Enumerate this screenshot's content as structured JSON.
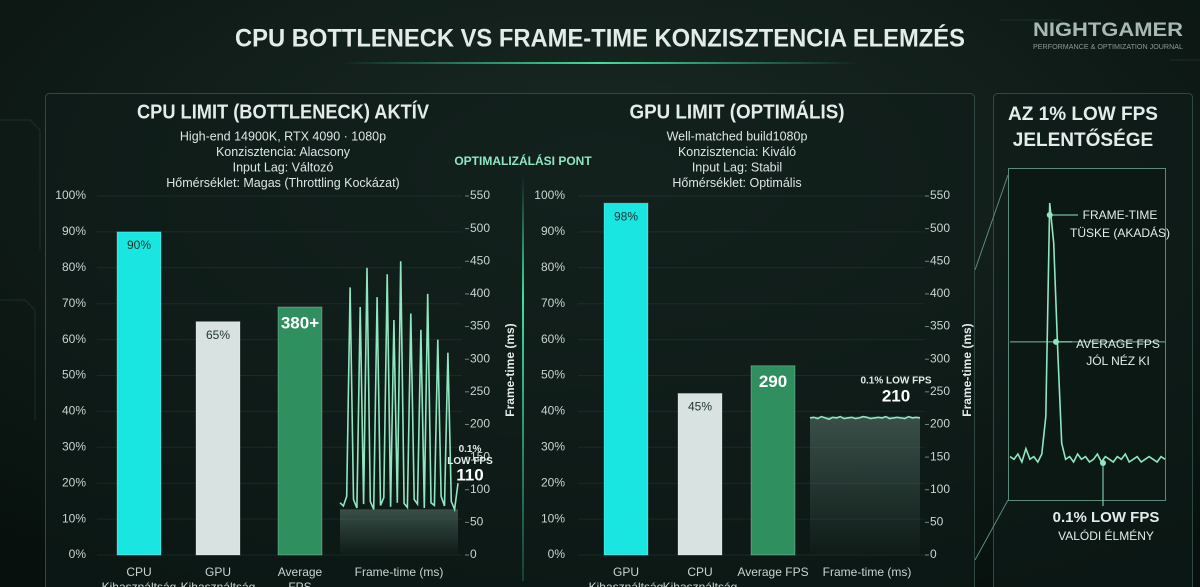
{
  "header": {
    "title": "CPU BOTTLENECK VS FRAME-TIME KONZISZTENCIA ELEMZÉS",
    "brand": "NIGHTGAMER",
    "brand_tagline": "PERFORMANCE & OPTIMIZATION JOURNAL",
    "divider_label": "OPTIMALIZÁLÁSI PONT"
  },
  "chart_data": [
    {
      "type": "bar",
      "title": "CPU LIMIT (BOTTLENECK) AKTÍV",
      "subtitle": [
        "High-end 14900K, RTX 4090 · 1080p",
        "Konzisztencia: Alacsony",
        "Input Lag: Változó",
        "Hőmérséklet: Magas (Throttling Kockázat)"
      ],
      "bars": [
        {
          "category": "CPU Kihasználtság",
          "value": 90,
          "value_label": "90%",
          "color": "#19e6e0"
        },
        {
          "category": "GPU Kihasználtság",
          "value": 65,
          "value_label": "65%",
          "color": "#d8e2e0"
        },
        {
          "category": "Average FPS",
          "value": 380,
          "value_label": "380+",
          "color": "#2f8f5e",
          "axis": "y2"
        }
      ],
      "frametime": {
        "name": "Frame-time (ms)",
        "color": "#8fe6c0",
        "axis": "y2",
        "values": [
          80,
          75,
          90,
          410,
          85,
          72,
          380,
          78,
          440,
          82,
          70,
          395,
          76,
          88,
          430,
          74,
          360,
          80,
          450,
          79,
          73,
          370,
          85,
          78,
          345,
          72,
          400,
          80,
          76,
          330,
          90,
          75,
          310,
          82,
          70,
          110
        ],
        "low_label": "0.1% LOW FPS",
        "low_value": 110
      },
      "ylim": [
        0,
        100
      ],
      "yticks": [
        {
          "value": 0,
          "label": "0%"
        },
        {
          "value": 10,
          "label": "10%"
        },
        {
          "value": 20,
          "label": "20%"
        },
        {
          "value": 30,
          "label": "30%"
        },
        {
          "value": 40,
          "label": "40%"
        },
        {
          "value": 50,
          "label": "50%"
        },
        {
          "value": 60,
          "label": "60%"
        },
        {
          "value": 70,
          "label": "70%"
        },
        {
          "value": 80,
          "label": "80%"
        },
        {
          "value": 90,
          "label": "90%"
        },
        {
          "value": 100,
          "label": "100%"
        }
      ],
      "y2lim": [
        0,
        550
      ],
      "y2ticks": [
        0,
        50,
        100,
        150,
        200,
        250,
        300,
        350,
        400,
        450,
        500,
        550
      ],
      "y2label": "Frame-time (ms)",
      "grid": true
    },
    {
      "type": "bar",
      "title": "GPU LIMIT (OPTIMÁLIS)",
      "subtitle": [
        "Well-matched build1080p",
        "Konzisztencia: Kiváló",
        "Input Lag: Stabil",
        "Hőmérséklet: Optimális"
      ],
      "bars": [
        {
          "category": "GPU Kihasználtság",
          "value": 98,
          "value_label": "98%",
          "color": "#19e6e0"
        },
        {
          "category": "CPU Kihasználtság",
          "value": 45,
          "value_label": "45%",
          "color": "#d8e2e0"
        },
        {
          "category": "Average FPS",
          "value": 290,
          "color": "#2f8f5e",
          "axis": "y2"
        }
      ],
      "frametime": {
        "name": "Frame-time (ms)",
        "color": "#8fe6c0",
        "axis": "y2",
        "values": [
          210,
          211,
          209,
          212,
          210,
          208,
          211,
          210,
          212,
          209,
          210,
          211,
          209,
          210,
          212,
          211,
          209,
          210,
          211,
          210,
          212,
          209,
          210,
          211,
          210,
          209,
          212,
          210,
          211,
          210
        ],
        "low_label": "0.1% LOW FPS",
        "low_value": 210
      },
      "ylim": [
        0,
        100
      ],
      "yticks": [
        {
          "value": 0,
          "label": "0%"
        },
        {
          "value": 10,
          "label": "10%"
        },
        {
          "value": 20,
          "label": "20%"
        },
        {
          "value": 30,
          "label": "30%"
        },
        {
          "value": 40,
          "label": "40%"
        },
        {
          "value": 50,
          "label": "50%"
        },
        {
          "value": 60,
          "label": "60%"
        },
        {
          "value": 70,
          "label": "70%"
        },
        {
          "value": 80,
          "label": "80%"
        },
        {
          "value": 90,
          "label": "90%"
        },
        {
          "value": 100,
          "label": "100%"
        }
      ],
      "y2lim": [
        0,
        550
      ],
      "y2ticks": [
        0,
        50,
        100,
        150,
        200,
        250,
        300,
        350,
        400,
        450,
        500,
        550
      ],
      "y2label": "Frame-time (ms)",
      "grid": true
    },
    {
      "type": "line",
      "title": [
        "AZ 1% LOW FPS",
        "JELENTŐSÉGE"
      ],
      "color": "#8fe6c0",
      "values": [
        5,
        4,
        6,
        3,
        8,
        4,
        5,
        3,
        6,
        20,
        100,
        85,
        45,
        10,
        4,
        5,
        3,
        6,
        4,
        5,
        3,
        4,
        6,
        3,
        5,
        4,
        3,
        5,
        4,
        6,
        3,
        4,
        5,
        3,
        4,
        5,
        4,
        3,
        5,
        4
      ],
      "average": 48,
      "spike_note": [
        "FRAME-TIME",
        "TÜSKE (AKADÁS)"
      ],
      "average_note": [
        "AVERAGE FPS",
        "JÓL NÉZ KI"
      ],
      "low_note": [
        "0.1% LOW FPS",
        "VALÓDI ÉLMÉNY"
      ]
    }
  ]
}
